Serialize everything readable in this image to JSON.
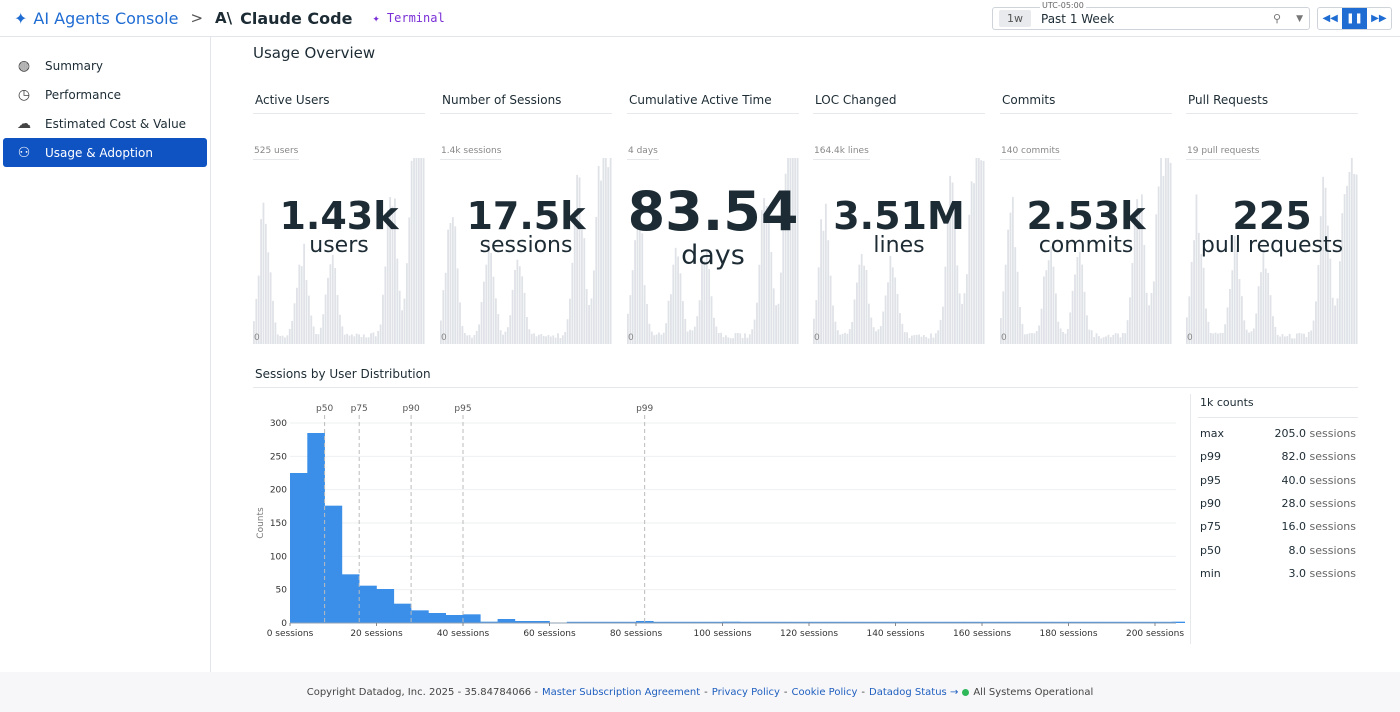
{
  "header": {
    "brand": "AI Agents Console",
    "separator": ">",
    "logo": "A\\",
    "app": "Claude Code",
    "tag": "Terminal",
    "timezone": "UTC-05:00",
    "range_short": "1w",
    "range_label": "Past 1 Week"
  },
  "sidebar": {
    "items": [
      {
        "label": "Summary",
        "icon": "globe-icon",
        "glyph": "◍"
      },
      {
        "label": "Performance",
        "icon": "clock-icon",
        "glyph": "◷"
      },
      {
        "label": "Estimated Cost & Value",
        "icon": "cost-cloud-icon",
        "glyph": "☁"
      },
      {
        "label": "Usage & Adoption",
        "icon": "users-icon",
        "glyph": "⚇",
        "active": true
      }
    ]
  },
  "overview": {
    "title": "Usage Overview",
    "cards": [
      {
        "title": "Active Users",
        "caption": "525 users",
        "zero": "0",
        "value": "1.43k",
        "unit": "users"
      },
      {
        "title": "Number of Sessions",
        "caption": "1.4k sessions",
        "zero": "0",
        "value": "17.5k",
        "unit": "sessions"
      },
      {
        "title": "Cumulative Active Time",
        "caption": "4 days",
        "zero": "0",
        "value": "83.54",
        "unit": "days"
      },
      {
        "title": "LOC Changed",
        "caption": "164.4k lines",
        "zero": "0",
        "value": "3.51M",
        "unit": "lines"
      },
      {
        "title": "Commits",
        "caption": "140 commits",
        "zero": "0",
        "value": "2.53k",
        "unit": "commits"
      },
      {
        "title": "Pull Requests",
        "caption": "19 pull requests",
        "zero": "0",
        "value": "225",
        "unit": "pull requests"
      }
    ]
  },
  "chart_data": {
    "type": "bar",
    "title": "Sessions by User Distribution",
    "ylabel": "Counts",
    "ylim": [
      0,
      300
    ],
    "xlim": [
      0,
      205
    ],
    "yticks": [
      "0",
      "50",
      "100",
      "150",
      "200",
      "250",
      "300"
    ],
    "xticks": [
      "0 sessions",
      "20 sessions",
      "40 sessions",
      "60 sessions",
      "80 sessions",
      "100 sessions",
      "120 sessions",
      "140 sessions",
      "160 sessions",
      "180 sessions",
      "200 sessions"
    ],
    "bin_width": 4,
    "values": [
      225,
      285,
      176,
      73,
      56,
      51,
      29,
      19,
      15,
      12,
      13,
      2,
      6,
      3,
      3,
      0,
      1,
      1,
      1,
      1,
      3,
      1,
      1,
      1,
      1,
      2,
      1,
      1,
      1,
      1,
      1,
      1,
      1,
      1,
      1,
      1,
      1,
      1,
      1,
      1,
      1,
      1,
      1,
      1,
      1,
      1,
      1,
      1,
      1,
      1,
      1,
      2
    ],
    "color": "#3b8fe8",
    "markers": [
      {
        "label": "p50",
        "x": 8
      },
      {
        "label": "p75",
        "x": 16
      },
      {
        "label": "p90",
        "x": 28
      },
      {
        "label": "p95",
        "x": 40
      },
      {
        "label": "p99",
        "x": 82
      }
    ],
    "grid": true
  },
  "stats": {
    "header": "1k counts",
    "rows": [
      {
        "label": "max",
        "value": "205.0",
        "unit": "sessions"
      },
      {
        "label": "p99",
        "value": "82.0",
        "unit": "sessions"
      },
      {
        "label": "p95",
        "value": "40.0",
        "unit": "sessions"
      },
      {
        "label": "p90",
        "value": "28.0",
        "unit": "sessions"
      },
      {
        "label": "p75",
        "value": "16.0",
        "unit": "sessions"
      },
      {
        "label": "p50",
        "value": "8.0",
        "unit": "sessions"
      },
      {
        "label": "min",
        "value": "3.0",
        "unit": "sessions"
      }
    ]
  },
  "footer": {
    "copyright": "Copyright Datadog, Inc. 2025 - 35.84784066 -",
    "links": [
      "Master Subscription Agreement",
      "Privacy Policy",
      "Cookie Policy",
      "Datadog Status →"
    ],
    "status": "All Systems Operational"
  }
}
